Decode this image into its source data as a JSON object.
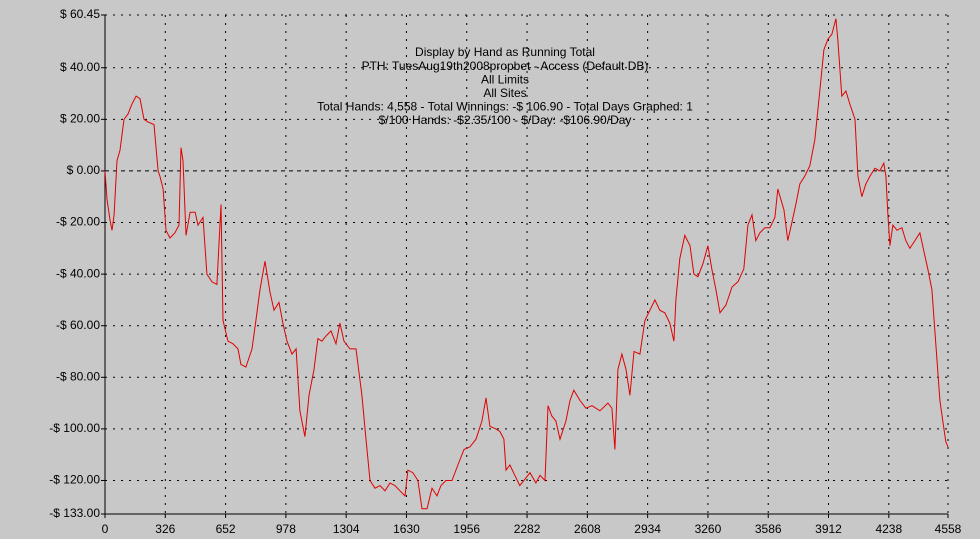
{
  "chart_data": {
    "type": "line",
    "header_lines": [
      "Display by Hand as Running Total",
      "PTH: TuesAug19th2008propbet - Access (Default DB)",
      "All Limits",
      "All Sites",
      "Total Hands: 4,558 - Total Winnings: -$ 106.90 - Total Days Graphed: 1",
      "$/100 Hands: -$2.35/100 - $/Day: -$106.90/Day"
    ],
    "xlim": [
      0,
      4558
    ],
    "xticks": [
      0,
      326,
      652,
      978,
      1304,
      1630,
      1956,
      2282,
      2608,
      2934,
      3260,
      3586,
      3912,
      4238,
      4558
    ],
    "ylim": [
      -133,
      60.45
    ],
    "yticks": [
      {
        "value": 60.45,
        "label": "$ 60.45"
      },
      {
        "value": 40,
        "label": "$ 40.00"
      },
      {
        "value": 20,
        "label": "$ 20.00"
      },
      {
        "value": 0,
        "label": "$ 0.00"
      },
      {
        "value": -20,
        "label": "-$ 20.00"
      },
      {
        "value": -40,
        "label": "-$ 40.00"
      },
      {
        "value": -60,
        "label": "-$ 60.00"
      },
      {
        "value": -80,
        "label": "-$ 80.00"
      },
      {
        "value": -100,
        "label": "-$ 100.00"
      },
      {
        "value": -120,
        "label": "-$ 120.00"
      },
      {
        "value": -133,
        "label": "-$ 133.00"
      }
    ],
    "grid": true,
    "series": [
      {
        "color": "#e00000",
        "x": [
          0,
          11,
          27,
          38,
          49,
          65,
          81,
          103,
          124,
          146,
          168,
          189,
          211,
          232,
          265,
          287,
          297,
          314,
          330,
          351,
          378,
          400,
          411,
          422,
          438,
          460,
          487,
          503,
          530,
          551,
          578,
          605,
          627,
          638,
          665,
          692,
          719,
          735,
          762,
          795,
          816,
          838,
          865,
          892,
          914,
          941,
          962,
          984,
          1011,
          1033,
          1054,
          1081,
          1103,
          1130,
          1151,
          1173,
          1195,
          1222,
          1249,
          1270,
          1292,
          1324,
          1357,
          1389,
          1411,
          1433,
          1460,
          1487,
          1514,
          1541,
          1568,
          1595,
          1622,
          1638,
          1665,
          1692,
          1714,
          1741,
          1768,
          1795,
          1816,
          1843,
          1876,
          1908,
          1941,
          1973,
          2006,
          2038,
          2060,
          2081,
          2114,
          2135,
          2157,
          2168,
          2189,
          2216,
          2243,
          2276,
          2298,
          2330,
          2352,
          2379,
          2395,
          2416,
          2438,
          2460,
          2492,
          2514,
          2535,
          2568,
          2600,
          2633,
          2676,
          2719,
          2741,
          2757,
          2773,
          2795,
          2817,
          2838,
          2860,
          2892,
          2919,
          2946,
          2973,
          3000,
          3027,
          3054,
          3076,
          3087,
          3108,
          3135,
          3163,
          3184,
          3206,
          3233,
          3260,
          3281,
          3303,
          3325,
          3357,
          3390,
          3422,
          3454,
          3476,
          3498,
          3519,
          3541,
          3568,
          3595,
          3622,
          3638,
          3671,
          3692,
          3714,
          3735,
          3757,
          3784,
          3811,
          3838,
          3865,
          3887,
          3908,
          3930,
          3952,
          3962,
          3984,
          4006,
          4027,
          4055,
          4071,
          4092,
          4114,
          4136,
          4163,
          4190,
          4211,
          4222,
          4233,
          4244,
          4260,
          4282,
          4309,
          4330,
          4352,
          4379,
          4406,
          4427,
          4449,
          4471,
          4492,
          4514,
          4530,
          4546,
          4558
        ],
        "values": [
          0,
          -11,
          -19,
          -23,
          -17,
          4,
          8,
          20,
          22,
          26,
          29,
          28,
          20,
          19,
          18,
          0,
          -2,
          -7,
          -23,
          -26,
          -24,
          -21,
          9,
          4,
          -25,
          -16,
          -16,
          -21,
          -18,
          -40,
          -43,
          -44,
          -13,
          -58,
          -66,
          -67,
          -69,
          -75,
          -76,
          -69,
          -58,
          -46,
          -35,
          -47,
          -54,
          -51,
          -59,
          -66,
          -71,
          -69,
          -93,
          -103,
          -87,
          -77,
          -65,
          -66,
          -64,
          -62,
          -67,
          -59,
          -66,
          -69,
          -69,
          -87,
          -104,
          -120,
          -123,
          -122,
          -124,
          -121,
          -122,
          -124,
          -126,
          -116,
          -117,
          -120,
          -131,
          -131,
          -123,
          -126,
          -122,
          -120,
          -120,
          -114,
          -108,
          -107,
          -104,
          -97,
          -88,
          -99,
          -100,
          -101,
          -104,
          -116,
          -114,
          -118,
          -122,
          -119,
          -117,
          -121,
          -118,
          -120,
          -91,
          -95,
          -97,
          -104,
          -97,
          -89,
          -85,
          -89,
          -92,
          -91,
          -93,
          -90,
          -92,
          -108,
          -77,
          -71,
          -77,
          -87,
          -70,
          -71,
          -58,
          -54,
          -50,
          -54,
          -55,
          -59,
          -66,
          -50,
          -34,
          -25,
          -29,
          -40,
          -41,
          -36,
          -29,
          -38,
          -46,
          -55,
          -52,
          -45,
          -43,
          -38,
          -21,
          -17,
          -27,
          -24,
          -22,
          -22,
          -18,
          -7,
          -15,
          -27,
          -20,
          -13,
          -5,
          -2,
          2,
          12,
          31,
          47,
          51,
          53,
          59,
          51,
          29,
          31,
          26,
          20,
          -2,
          -10,
          -5,
          -2,
          1,
          0,
          3,
          -2,
          -17,
          -29,
          -21,
          -23,
          -22,
          -27,
          -30,
          -27,
          -24,
          -31,
          -38,
          -46,
          -67,
          -89,
          -97,
          -105,
          -107
        ]
      }
    ]
  }
}
